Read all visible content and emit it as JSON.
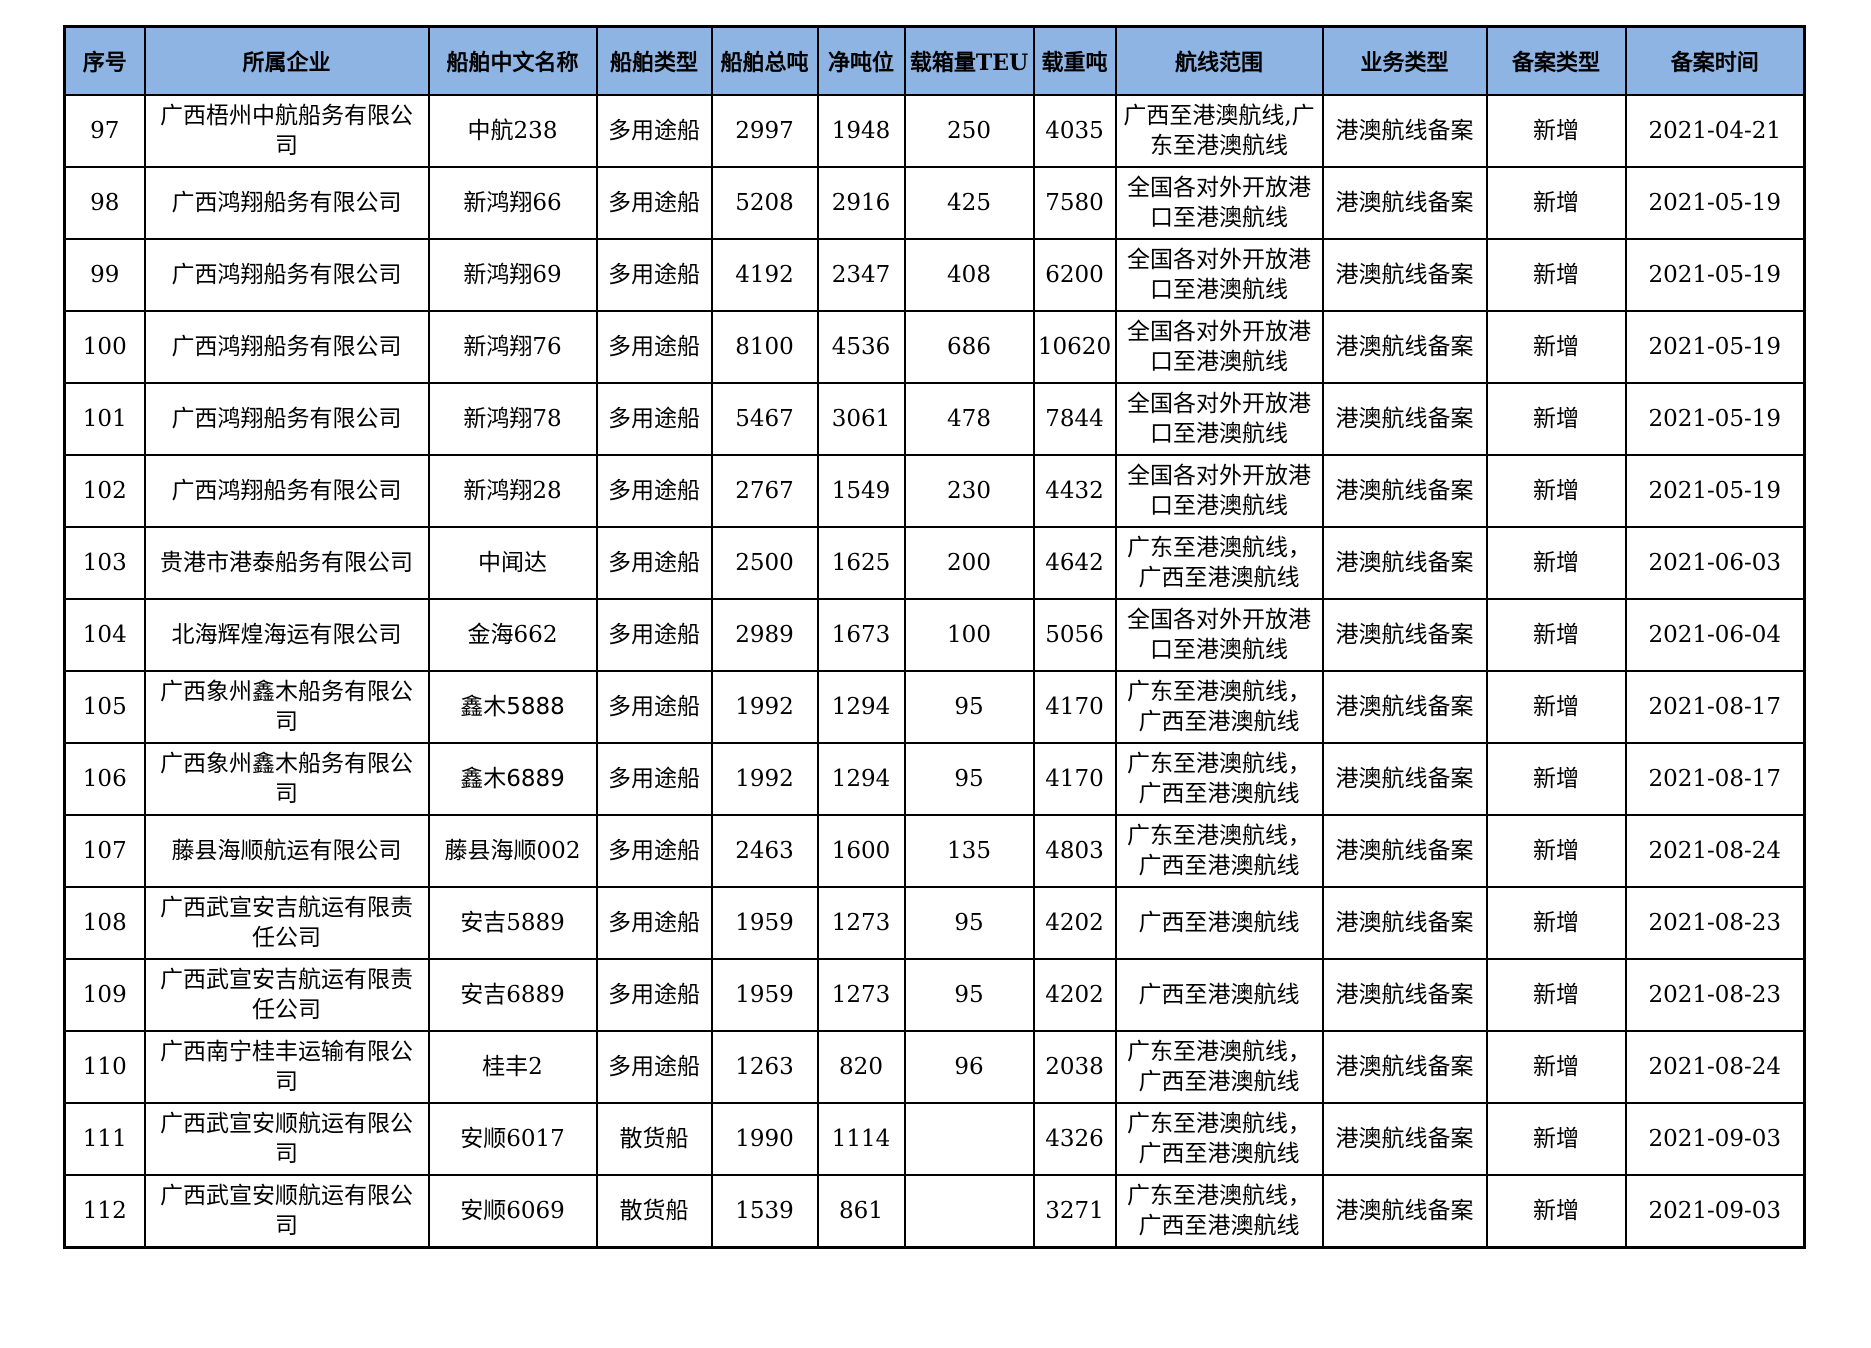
{
  "colors": {
    "header_bg": "#8db4e2",
    "border": "#000000",
    "text": "#000000",
    "page_bg": "#ffffff"
  },
  "table": {
    "columns": [
      "序号",
      "所属企业",
      "船舶中文名称",
      "船舶类型",
      "船舶总吨",
      "净吨位",
      "载箱量TEU",
      "载重吨",
      "航线范围",
      "业务类型",
      "备案类型",
      "备案时间"
    ],
    "rows": [
      {
        "no": "97",
        "company": "广西梧州中航船务有限公\n司",
        "ship": "中航238",
        "type": "多用途船",
        "gross": "2997",
        "net": "1948",
        "teu": "250",
        "dwt": "4035",
        "route": "广西至港澳航线,广\n东至港澳航线",
        "business": "港澳航线备案",
        "filing": "新增",
        "date": "2021-04-21"
      },
      {
        "no": "98",
        "company": "广西鸿翔船务有限公司",
        "ship": "新鸿翔66",
        "type": "多用途船",
        "gross": "5208",
        "net": "2916",
        "teu": "425",
        "dwt": "7580",
        "route": "全国各对外开放港\n口至港澳航线",
        "business": "港澳航线备案",
        "filing": "新增",
        "date": "2021-05-19"
      },
      {
        "no": "99",
        "company": "广西鸿翔船务有限公司",
        "ship": "新鸿翔69",
        "type": "多用途船",
        "gross": "4192",
        "net": "2347",
        "teu": "408",
        "dwt": "6200",
        "route": "全国各对外开放港\n口至港澳航线",
        "business": "港澳航线备案",
        "filing": "新增",
        "date": "2021-05-19"
      },
      {
        "no": "100",
        "company": "广西鸿翔船务有限公司",
        "ship": "新鸿翔76",
        "type": "多用途船",
        "gross": "8100",
        "net": "4536",
        "teu": "686",
        "dwt": "10620",
        "route": "全国各对外开放港\n口至港澳航线",
        "business": "港澳航线备案",
        "filing": "新增",
        "date": "2021-05-19"
      },
      {
        "no": "101",
        "company": "广西鸿翔船务有限公司",
        "ship": "新鸿翔78",
        "type": "多用途船",
        "gross": "5467",
        "net": "3061",
        "teu": "478",
        "dwt": "7844",
        "route": "全国各对外开放港\n口至港澳航线",
        "business": "港澳航线备案",
        "filing": "新增",
        "date": "2021-05-19"
      },
      {
        "no": "102",
        "company": "广西鸿翔船务有限公司",
        "ship": "新鸿翔28",
        "type": "多用途船",
        "gross": "2767",
        "net": "1549",
        "teu": "230",
        "dwt": "4432",
        "route": "全国各对外开放港\n口至港澳航线",
        "business": "港澳航线备案",
        "filing": "新增",
        "date": "2021-05-19"
      },
      {
        "no": "103",
        "company": "贵港市港泰船务有限公司",
        "ship": "中闻达",
        "type": "多用途船",
        "gross": "2500",
        "net": "1625",
        "teu": "200",
        "dwt": "4642",
        "route": "广东至港澳航线，\n广西至港澳航线",
        "business": "港澳航线备案",
        "filing": "新增",
        "date": "2021-06-03"
      },
      {
        "no": "104",
        "company": "北海辉煌海运有限公司",
        "ship": "金海662",
        "type": "多用途船",
        "gross": "2989",
        "net": "1673",
        "teu": "100",
        "dwt": "5056",
        "route": "全国各对外开放港\n口至港澳航线",
        "business": "港澳航线备案",
        "filing": "新增",
        "date": "2021-06-04"
      },
      {
        "no": "105",
        "company": "广西象州鑫木船务有限公\n司",
        "ship": "鑫木5888",
        "ship_sans": true,
        "type": "多用途船",
        "gross": "1992",
        "net": "1294",
        "teu": "95",
        "dwt": "4170",
        "route": "广东至港澳航线，\n广西至港澳航线",
        "business": "港澳航线备案",
        "filing": "新增",
        "date": "2021-08-17"
      },
      {
        "no": "106",
        "company": "广西象州鑫木船务有限公\n司",
        "ship": "鑫木6889",
        "ship_sans": true,
        "type": "多用途船",
        "gross": "1992",
        "net": "1294",
        "teu": "95",
        "dwt": "4170",
        "route": "广东至港澳航线，\n广西至港澳航线",
        "business": "港澳航线备案",
        "filing": "新增",
        "date": "2021-08-17"
      },
      {
        "no": "107",
        "company": "藤县海顺航运有限公司",
        "ship": "藤县海顺002",
        "type": "多用途船",
        "gross": "2463",
        "net": "1600",
        "teu": "135",
        "dwt": "4803",
        "route": "广东至港澳航线，\n广西至港澳航线",
        "business": "港澳航线备案",
        "filing": "新增",
        "date": "2021-08-24"
      },
      {
        "no": "108",
        "company": "广西武宣安吉航运有限责\n任公司",
        "ship": "安吉5889",
        "type": "多用途船",
        "gross": "1959",
        "net": "1273",
        "teu": "95",
        "dwt": "4202",
        "route": "广西至港澳航线",
        "business": "港澳航线备案",
        "filing": "新增",
        "date": "2021-08-23"
      },
      {
        "no": "109",
        "company": "广西武宣安吉航运有限责\n任公司",
        "ship": "安吉6889",
        "type": "多用途船",
        "gross": "1959",
        "net": "1273",
        "teu": "95",
        "dwt": "4202",
        "route": "广西至港澳航线",
        "business": "港澳航线备案",
        "filing": "新增",
        "date": "2021-08-23"
      },
      {
        "no": "110",
        "company": "广西南宁桂丰运输有限公\n司",
        "ship": "桂丰2",
        "type": "多用途船",
        "gross": "1263",
        "net": "820",
        "teu": "96",
        "dwt": "2038",
        "route": "广东至港澳航线，\n广西至港澳航线",
        "business": "港澳航线备案",
        "filing": "新增",
        "date": "2021-08-24"
      },
      {
        "no": "111",
        "company": "广西武宣安顺航运有限公\n司",
        "ship": "安顺6017",
        "type": "散货船",
        "gross": "1990",
        "net": "1114",
        "teu": "",
        "dwt": "4326",
        "route": "广东至港澳航线，\n广西至港澳航线",
        "business": "港澳航线备案",
        "filing": "新增",
        "date": "2021-09-03"
      },
      {
        "no": "112",
        "company": "广西武宣安顺航运有限公\n司",
        "ship": "安顺6069",
        "type": "散货船",
        "gross": "1539",
        "net": "861",
        "teu": "",
        "dwt": "3271",
        "route": "广东至港澳航线，\n广西至港澳航线",
        "business": "港澳航线备案",
        "filing": "新增",
        "date": "2021-09-03"
      }
    ]
  }
}
